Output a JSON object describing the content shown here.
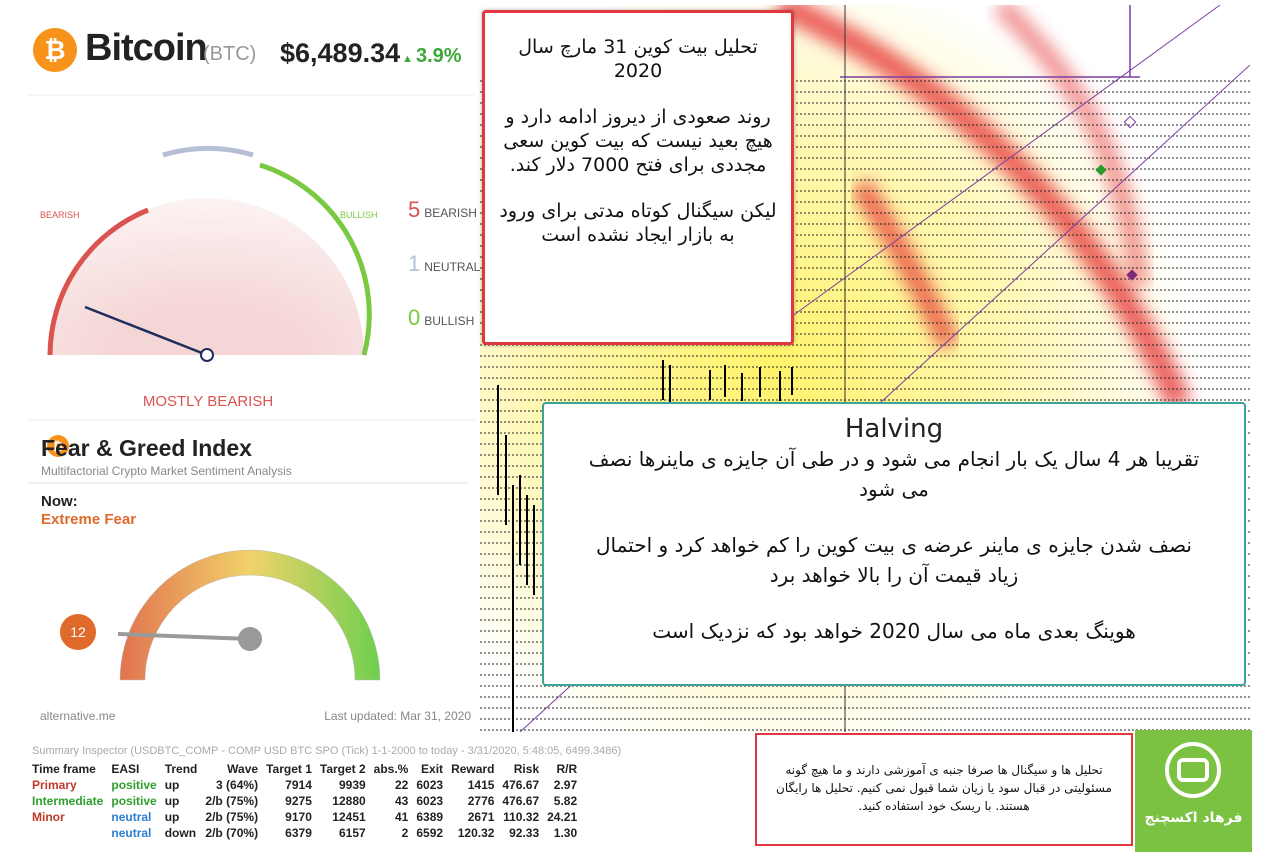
{
  "header": {
    "name": "Bitcoin",
    "symbol": "(BTC)",
    "price": "$6,489.34",
    "change": "3.9%"
  },
  "sentiment": {
    "bearish_label": "BEARISH",
    "bullish_label": "BULLISH",
    "counts": [
      {
        "count": "5",
        "label": "BEARISH"
      },
      {
        "count": "1",
        "label": "NEUTRAL"
      },
      {
        "count": "0",
        "label": "BULLISH"
      }
    ],
    "verdict": "MOSTLY BEARISH"
  },
  "fear_greed": {
    "title": "Fear & Greed Index",
    "subtitle": "Multifactorial Crypto Market Sentiment Analysis",
    "now_label": "Now:",
    "now_value": "Extreme Fear",
    "value": "12",
    "source": "alternative.me",
    "updated": "Last updated: Mar 31, 2020"
  },
  "note_daily": {
    "title": "تحلیل بیت کوین 31 مارچ سال 2020",
    "paragraphs": [
      "روند صعودی از دیروز ادامه دارد و هیچ بعید نیست که بیت کوین سعی مجددی برای فتح 7000 دلار کند.",
      "لیکن سیگنال کوتاه مدتی برای ورود به بازار ایجاد نشده است"
    ]
  },
  "note_halving": {
    "title": "Halving",
    "paragraphs": [
      "تقریبا هر 4 سال یک بار انجام می شود و در طی آن جایزه ی ماینرها نصف می شود",
      "نصف شدن جایزه ی ماینر عرضه ی بیت کوین را کم خواهد کرد و احتمال زیاد قیمت آن را بالا خواهد برد",
      "هوینگ بعدی ماه می سال 2020 خواهد بود که نزدیک است"
    ]
  },
  "inspector": {
    "title": "Summary Inspector (USDBTC_COMP - COMP USD BTC SPO (Tick)  1-1-2000 to today - 3/31/2020, 5:48:05, 6499.3486)",
    "columns": [
      "Time frame",
      "EASI",
      "Trend",
      "Wave",
      "Target 1",
      "Target 2",
      "abs.%",
      "Exit",
      "Reward",
      "Risk",
      "R/R"
    ],
    "rows": [
      [
        "Primary",
        "positive",
        "up",
        "3 (64%)",
        "7914",
        "9939",
        "22",
        "6023",
        "1415",
        "476.67",
        "2.97"
      ],
      [
        "Intermediate",
        "positive",
        "up",
        "2/b (75%)",
        "9275",
        "12880",
        "43",
        "6023",
        "2776",
        "476.67",
        "5.82"
      ],
      [
        "Minor",
        "neutral",
        "up",
        "2/b (75%)",
        "9170",
        "12451",
        "41",
        "6389",
        "2671",
        "110.32",
        "24.21"
      ],
      [
        null,
        "neutral",
        "down",
        "2/b (70%)",
        "6379",
        "6157",
        "2",
        "6592",
        "120.32",
        "92.33",
        "1.30"
      ]
    ]
  },
  "disclaimer": "تحلیل ها و سیگنال ها صرفا جنبه ی آموزشی دارند و ما هیچ گونه مسئولیتی در قبال سود یا زیان شما قبول نمی کنیم. تحلیل ها رایگان هستند. با ریسک خود استفاده کنید.",
  "brand": "فرهاد اکسچنج"
}
